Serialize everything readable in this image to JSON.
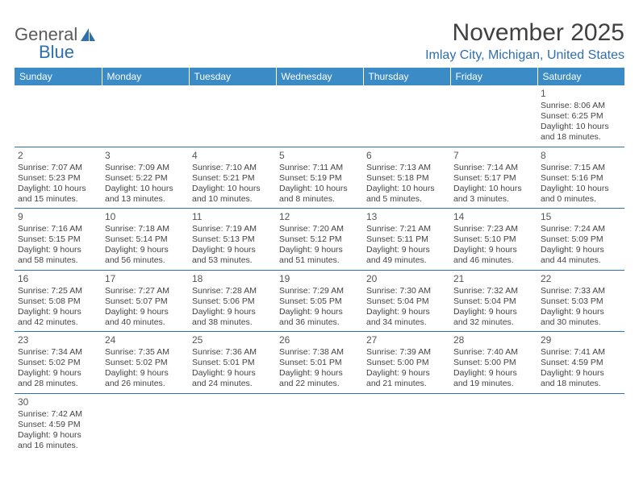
{
  "logo": {
    "text1": "General",
    "text2": "Blue"
  },
  "title": "November 2025",
  "location": "Imlay City, Michigan, United States",
  "colors": {
    "header_bg": "#3b8bc6",
    "header_text": "#ffffff",
    "accent": "#2f6fae",
    "body_text": "#444444",
    "title_text": "#404040",
    "page_bg": "#ffffff"
  },
  "day_headers": [
    "Sunday",
    "Monday",
    "Tuesday",
    "Wednesday",
    "Thursday",
    "Friday",
    "Saturday"
  ],
  "weeks": [
    [
      null,
      null,
      null,
      null,
      null,
      null,
      {
        "n": "1",
        "sr": "8:06 AM",
        "ss": "6:25 PM",
        "dh": "10",
        "dm": "18"
      }
    ],
    [
      {
        "n": "2",
        "sr": "7:07 AM",
        "ss": "5:23 PM",
        "dh": "10",
        "dm": "15"
      },
      {
        "n": "3",
        "sr": "7:09 AM",
        "ss": "5:22 PM",
        "dh": "10",
        "dm": "13"
      },
      {
        "n": "4",
        "sr": "7:10 AM",
        "ss": "5:21 PM",
        "dh": "10",
        "dm": "10"
      },
      {
        "n": "5",
        "sr": "7:11 AM",
        "ss": "5:19 PM",
        "dh": "10",
        "dm": "8"
      },
      {
        "n": "6",
        "sr": "7:13 AM",
        "ss": "5:18 PM",
        "dh": "10",
        "dm": "5"
      },
      {
        "n": "7",
        "sr": "7:14 AM",
        "ss": "5:17 PM",
        "dh": "10",
        "dm": "3"
      },
      {
        "n": "8",
        "sr": "7:15 AM",
        "ss": "5:16 PM",
        "dh": "10",
        "dm": "0"
      }
    ],
    [
      {
        "n": "9",
        "sr": "7:16 AM",
        "ss": "5:15 PM",
        "dh": "9",
        "dm": "58"
      },
      {
        "n": "10",
        "sr": "7:18 AM",
        "ss": "5:14 PM",
        "dh": "9",
        "dm": "56"
      },
      {
        "n": "11",
        "sr": "7:19 AM",
        "ss": "5:13 PM",
        "dh": "9",
        "dm": "53"
      },
      {
        "n": "12",
        "sr": "7:20 AM",
        "ss": "5:12 PM",
        "dh": "9",
        "dm": "51"
      },
      {
        "n": "13",
        "sr": "7:21 AM",
        "ss": "5:11 PM",
        "dh": "9",
        "dm": "49"
      },
      {
        "n": "14",
        "sr": "7:23 AM",
        "ss": "5:10 PM",
        "dh": "9",
        "dm": "46"
      },
      {
        "n": "15",
        "sr": "7:24 AM",
        "ss": "5:09 PM",
        "dh": "9",
        "dm": "44"
      }
    ],
    [
      {
        "n": "16",
        "sr": "7:25 AM",
        "ss": "5:08 PM",
        "dh": "9",
        "dm": "42"
      },
      {
        "n": "17",
        "sr": "7:27 AM",
        "ss": "5:07 PM",
        "dh": "9",
        "dm": "40"
      },
      {
        "n": "18",
        "sr": "7:28 AM",
        "ss": "5:06 PM",
        "dh": "9",
        "dm": "38"
      },
      {
        "n": "19",
        "sr": "7:29 AM",
        "ss": "5:05 PM",
        "dh": "9",
        "dm": "36"
      },
      {
        "n": "20",
        "sr": "7:30 AM",
        "ss": "5:04 PM",
        "dh": "9",
        "dm": "34"
      },
      {
        "n": "21",
        "sr": "7:32 AM",
        "ss": "5:04 PM",
        "dh": "9",
        "dm": "32"
      },
      {
        "n": "22",
        "sr": "7:33 AM",
        "ss": "5:03 PM",
        "dh": "9",
        "dm": "30"
      }
    ],
    [
      {
        "n": "23",
        "sr": "7:34 AM",
        "ss": "5:02 PM",
        "dh": "9",
        "dm": "28"
      },
      {
        "n": "24",
        "sr": "7:35 AM",
        "ss": "5:02 PM",
        "dh": "9",
        "dm": "26"
      },
      {
        "n": "25",
        "sr": "7:36 AM",
        "ss": "5:01 PM",
        "dh": "9",
        "dm": "24"
      },
      {
        "n": "26",
        "sr": "7:38 AM",
        "ss": "5:01 PM",
        "dh": "9",
        "dm": "22"
      },
      {
        "n": "27",
        "sr": "7:39 AM",
        "ss": "5:00 PM",
        "dh": "9",
        "dm": "21"
      },
      {
        "n": "28",
        "sr": "7:40 AM",
        "ss": "5:00 PM",
        "dh": "9",
        "dm": "19"
      },
      {
        "n": "29",
        "sr": "7:41 AM",
        "ss": "4:59 PM",
        "dh": "9",
        "dm": "18"
      }
    ],
    [
      {
        "n": "30",
        "sr": "7:42 AM",
        "ss": "4:59 PM",
        "dh": "9",
        "dm": "16"
      },
      null,
      null,
      null,
      null,
      null,
      null
    ]
  ],
  "labels": {
    "sunrise": "Sunrise: ",
    "sunset": "Sunset: ",
    "daylight_prefix": "Daylight: ",
    "hours_word": " hours",
    "and_word": "and ",
    "minutes_word": " minutes."
  }
}
